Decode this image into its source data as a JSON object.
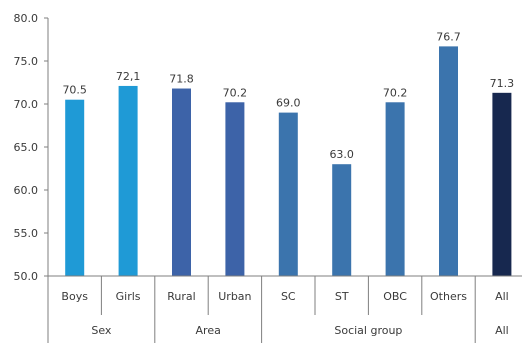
{
  "chart_data": {
    "type": "bar",
    "title": "",
    "xlabel": "",
    "ylabel": "",
    "ylim": [
      50.0,
      80.0
    ],
    "yticks": [
      "50.0",
      "55.0",
      "60.0",
      "65.0",
      "70.0",
      "75.0",
      "80.0"
    ],
    "grid": false,
    "categories": [
      "Boys",
      "Girls",
      "Rural",
      "Urban",
      "SC",
      "ST",
      "OBC",
      "Others",
      "All"
    ],
    "values": [
      70.5,
      72.1,
      71.8,
      70.2,
      69.0,
      63.0,
      70.2,
      76.7,
      71.3
    ],
    "data_labels": [
      "70.5",
      "72,1",
      "71.8",
      "70.2",
      "69.0",
      "63.0",
      "70.2",
      "76.7",
      "71.3"
    ],
    "groups": [
      {
        "label": "Sex",
        "members": [
          "Boys",
          "Girls"
        ]
      },
      {
        "label": "Area",
        "members": [
          "Rural",
          "Urban"
        ]
      },
      {
        "label": "Social group",
        "members": [
          "SC",
          "ST",
          "OBC",
          "Others"
        ]
      },
      {
        "label": "All",
        "members": [
          "All"
        ]
      }
    ],
    "colors": [
      "#1f9ad6",
      "#1f9ad6",
      "#3d63a8",
      "#3d63a8",
      "#3b74ad",
      "#3b74ad",
      "#3b74ad",
      "#3b74ad",
      "#17284f"
    ]
  }
}
